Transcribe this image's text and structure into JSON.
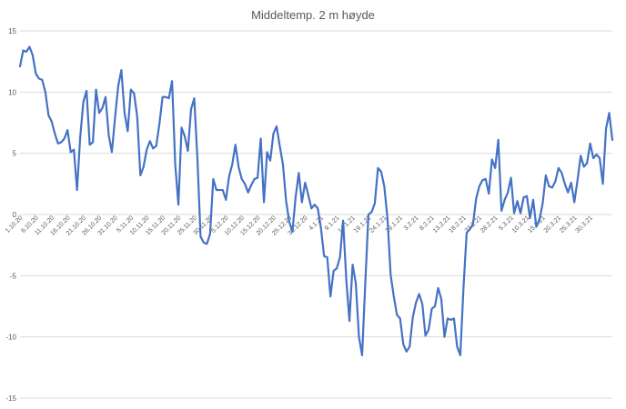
{
  "chart_data": {
    "type": "line",
    "title": "Middeltemp.  2 m høyde",
    "ylim": [
      -15,
      15
    ],
    "yticks": [
      15,
      10,
      5,
      0,
      -5,
      -10,
      -15
    ],
    "grid": true,
    "colors": {
      "series": "#4472c4",
      "grid": "#d9d9d9",
      "text": "#595959"
    },
    "x_tick_labels": [
      "1.10.20",
      "6.10.20",
      "11.10.20",
      "16.10.20",
      "21.10.20",
      "26.10.20",
      "31.10.20",
      "5.11.20",
      "10.11.20",
      "15.11.20",
      "20.11.20",
      "25.11.20",
      "30.11.20",
      "5.12.20",
      "10.12.20",
      "15.12.20",
      "20.12.20",
      "25.12.20",
      "30.12.20",
      "4.1.21",
      "9.1.21",
      "14.1.21",
      "19.1.21",
      "24.1.21",
      "29.1.21",
      "3.2.21",
      "8.2.21",
      "13.2.21",
      "18.2.21",
      "23.2.21",
      "28.2.21",
      "5.3.21",
      "10.3.21",
      "15.3.21",
      "20.3.21",
      "25.3.21",
      "30.3.21"
    ],
    "series": [
      {
        "values": [
          12.1,
          13.4,
          13.3,
          13.7,
          13.0,
          11.5,
          11.1,
          11.0,
          10.0,
          8.1,
          7.6,
          6.6,
          5.8,
          5.9,
          6.2,
          6.9,
          5.1,
          5.3,
          2.0,
          6.3,
          9.2,
          10.1,
          5.7,
          5.9,
          10.2,
          8.3,
          8.7,
          9.6,
          6.5,
          5.1,
          7.9,
          10.5,
          11.8,
          8.3,
          6.8,
          10.2,
          9.9,
          8.0,
          3.2,
          3.9,
          5.3,
          6.0,
          5.4,
          5.6,
          7.4,
          9.6,
          9.6,
          9.5,
          10.9,
          4.1,
          0.8,
          7.1,
          6.4,
          5.2,
          8.6,
          9.5,
          4.6,
          -1.8,
          -2.3,
          -2.4,
          -1.6,
          2.9,
          2.0,
          2.0,
          2.0,
          1.2,
          3.1,
          4.1,
          5.7,
          3.9,
          2.9,
          2.5,
          1.8,
          2.4,
          2.9,
          3.0,
          6.2,
          1.0,
          5.1,
          4.4,
          6.6,
          7.2,
          5.6,
          4.1,
          1.1,
          -0.6,
          -1.4,
          1.4,
          3.4,
          1.0,
          2.6,
          1.6,
          0.5,
          0.8,
          0.5,
          -1.1,
          -3.4,
          -3.5,
          -6.7,
          -4.6,
          -4.4,
          -3.5,
          -0.5,
          -5.3,
          -8.7,
          -4.1,
          -5.6,
          -10.0,
          -11.5,
          -5.6,
          0.0,
          0.2,
          0.9,
          3.8,
          3.5,
          2.3,
          -0.3,
          -4.9,
          -6.7,
          -8.2,
          -8.5,
          -10.6,
          -11.2,
          -10.8,
          -8.4,
          -7.2,
          -6.5,
          -7.3,
          -9.9,
          -9.4,
          -7.7,
          -7.5,
          -6.0,
          -6.9,
          -10.0,
          -8.5,
          -8.6,
          -8.5,
          -10.8,
          -11.5,
          -6.0,
          -1.5,
          -1.2,
          -0.8,
          1.3,
          2.3,
          2.8,
          2.9,
          1.7,
          4.5,
          3.8,
          6.1,
          0.3,
          1.2,
          1.8,
          3.0,
          0.1,
          1.1,
          0.1,
          1.4,
          1.5,
          -0.3,
          1.2,
          -1.0,
          -0.4,
          0.9,
          3.2,
          2.3,
          2.2,
          2.7,
          3.8,
          3.4,
          2.5,
          1.8,
          2.6,
          1.0,
          2.8,
          4.8,
          3.9,
          4.2,
          5.8,
          4.6,
          4.9,
          4.6,
          2.5,
          7.0,
          8.3,
          6.1
        ]
      }
    ]
  }
}
